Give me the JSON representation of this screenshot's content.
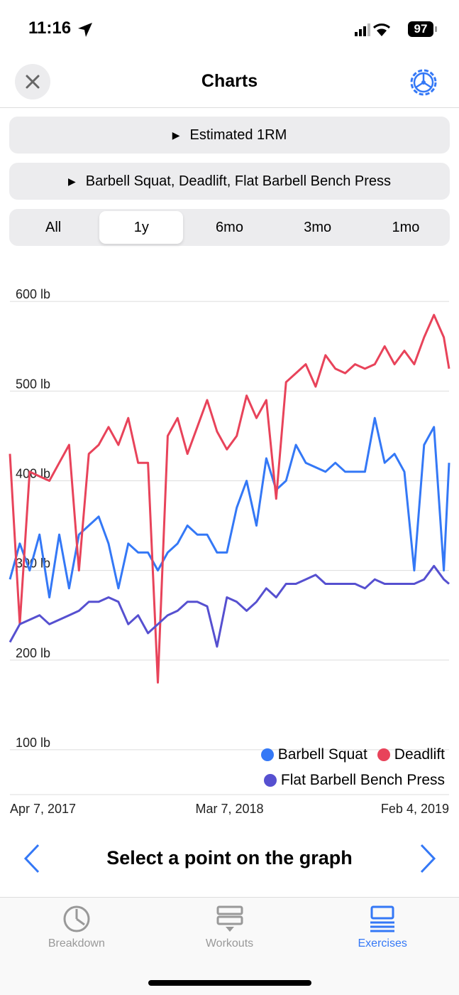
{
  "status_bar": {
    "time": "11:16",
    "battery": "97"
  },
  "header": {
    "title": "Charts"
  },
  "selectors": {
    "metric": "Estimated 1RM",
    "exercises": "Barbell Squat, Deadlift, Flat Barbell Bench Press"
  },
  "range_tabs": {
    "options": [
      "All",
      "1y",
      "6mo",
      "3mo",
      "1mo"
    ],
    "selected": 1
  },
  "chart_data": {
    "type": "line",
    "x": [
      "2017-04-07",
      "2017-04-22",
      "2017-05-07",
      "2017-05-22",
      "2017-06-06",
      "2017-06-21",
      "2017-07-06",
      "2017-07-21",
      "2017-08-05",
      "2017-08-20",
      "2017-09-04",
      "2017-09-19",
      "2017-10-04",
      "2017-10-19",
      "2017-11-03",
      "2017-11-18",
      "2017-12-03",
      "2017-12-18",
      "2018-01-02",
      "2018-01-17",
      "2018-02-01",
      "2018-02-16",
      "2018-03-03",
      "2018-03-18",
      "2018-04-02",
      "2018-04-17",
      "2018-05-02",
      "2018-05-17",
      "2018-06-01",
      "2018-06-16",
      "2018-07-01",
      "2018-07-16",
      "2018-07-31",
      "2018-08-15",
      "2018-08-30",
      "2018-09-14",
      "2018-09-29",
      "2018-10-14",
      "2018-10-29",
      "2018-11-13",
      "2018-11-28",
      "2018-12-13",
      "2018-12-28",
      "2019-01-12",
      "2019-01-27",
      "2019-02-04"
    ],
    "series": [
      {
        "name": "Barbell Squat",
        "color": "#3478f6",
        "values": [
          290,
          330,
          300,
          340,
          270,
          340,
          280,
          340,
          350,
          360,
          330,
          280,
          330,
          320,
          320,
          300,
          320,
          330,
          350,
          340,
          340,
          320,
          320,
          370,
          400,
          350,
          425,
          390,
          400,
          440,
          420,
          415,
          410,
          420,
          410,
          410,
          410,
          470,
          420,
          430,
          410,
          300,
          440,
          460,
          300,
          420
        ]
      },
      {
        "name": "Deadlift",
        "color": "#e8435a",
        "values": [
          430,
          240,
          410,
          405,
          400,
          420,
          440,
          300,
          430,
          440,
          460,
          440,
          470,
          420,
          420,
          175,
          450,
          470,
          430,
          460,
          490,
          455,
          435,
          450,
          495,
          470,
          490,
          380,
          510,
          520,
          530,
          505,
          540,
          525,
          520,
          530,
          525,
          530,
          550,
          530,
          545,
          530,
          560,
          585,
          560,
          525
        ]
      },
      {
        "name": "Flat Barbell Bench Press",
        "color": "#5650d0",
        "values": [
          220,
          240,
          245,
          250,
          240,
          245,
          250,
          255,
          265,
          265,
          270,
          265,
          240,
          250,
          230,
          240,
          250,
          255,
          265,
          265,
          260,
          215,
          270,
          265,
          255,
          265,
          280,
          270,
          285,
          285,
          290,
          295,
          285,
          285,
          285,
          285,
          280,
          290,
          285,
          285,
          285,
          285,
          290,
          305,
          290,
          285
        ]
      }
    ],
    "ylim": [
      50,
      635
    ],
    "yticks": [
      {
        "value": 100,
        "label": "100 lb"
      },
      {
        "value": 200,
        "label": "200 lb"
      },
      {
        "value": 300,
        "label": "300 lb"
      },
      {
        "value": 400,
        "label": "400 lb"
      },
      {
        "value": 500,
        "label": "500 lb"
      },
      {
        "value": 600,
        "label": "600 lb"
      }
    ],
    "xlim": [
      "2017-04-07",
      "2019-02-04"
    ],
    "xticks": [
      {
        "value": "2017-04-07",
        "label": "Apr 7, 2017"
      },
      {
        "value": "2018-03-07",
        "label": "Mar 7, 2018"
      },
      {
        "value": "2019-02-04",
        "label": "Feb 4, 2019"
      }
    ],
    "grid": true,
    "legend": "bottom-right"
  },
  "detail": {
    "prompt": "Select a point on the graph"
  },
  "tab_bar": {
    "tabs": [
      "Breakdown",
      "Workouts",
      "Exercises"
    ],
    "active": 2
  }
}
